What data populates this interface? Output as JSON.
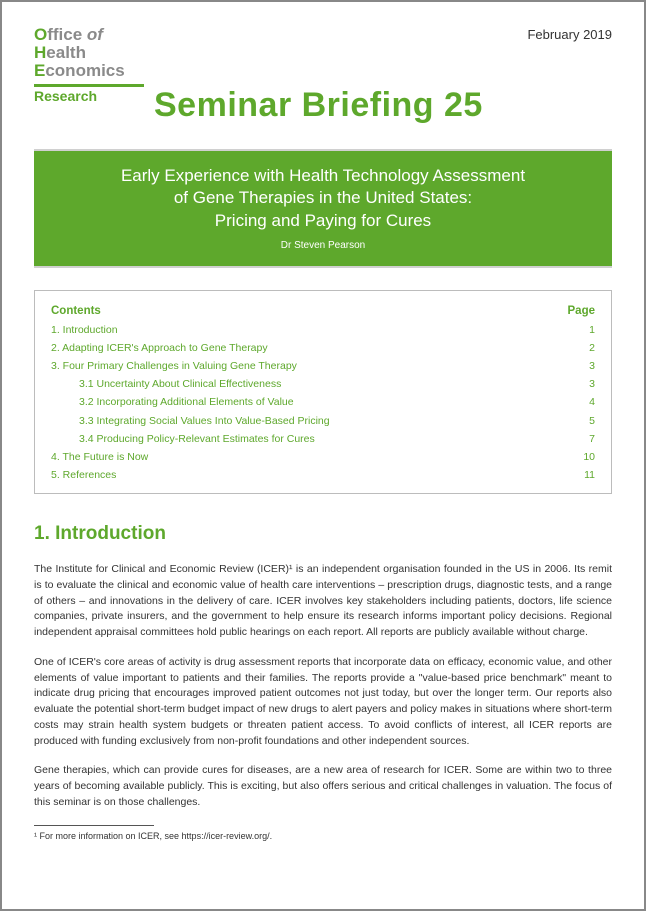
{
  "meta": {
    "date": "February 2019",
    "org_line1a": "O",
    "org_line1b": "ffice ",
    "org_line1c": "of",
    "org_line2a": "H",
    "org_line2b": "ealth",
    "org_line3a": "E",
    "org_line3b": "conomics",
    "org_research": "Research",
    "main_title": "Seminar Briefing 25"
  },
  "banner": {
    "line1": "Early Experience with Health Technology Assessment",
    "line2": "of Gene Therapies in the United States:",
    "line3": "Pricing and Paying for Cures",
    "author": "Dr Steven Pearson"
  },
  "toc": {
    "head_left": "Contents",
    "head_right": "Page",
    "rows": [
      {
        "label": "1.  Introduction",
        "page": "1",
        "sub": false
      },
      {
        "label": "2.  Adapting ICER's Approach to Gene Therapy",
        "page": "2",
        "sub": false
      },
      {
        "label": "3.  Four Primary Challenges in Valuing Gene Therapy",
        "page": "3",
        "sub": false
      },
      {
        "label": "3.1 Uncertainty About Clinical Effectiveness",
        "page": "3",
        "sub": true
      },
      {
        "label": "3.2 Incorporating Additional Elements of Value",
        "page": "4",
        "sub": true
      },
      {
        "label": "3.3 Integrating Social Values Into Value-Based Pricing",
        "page": "5",
        "sub": true
      },
      {
        "label": "3.4 Producing Policy-Relevant Estimates for Cures",
        "page": "7",
        "sub": true
      },
      {
        "label": "4.  The Future is Now",
        "page": "10",
        "sub": false
      },
      {
        "label": "5.  References",
        "page": "11",
        "sub": false
      }
    ]
  },
  "section": {
    "heading": "1. Introduction",
    "p1": "The Institute for Clinical and Economic Review (ICER)¹ is an independent organisation founded in the US in 2006. Its remit is to evaluate the clinical and economic value of health care interventions – prescription drugs, diagnostic tests, and a range of others – and innovations in the delivery of care. ICER involves key stakeholders including patients, doctors, life science companies, private insurers, and the government to help ensure its research informs important policy decisions. Regional independent appraisal committees hold public hearings on each report. All reports are publicly available without charge.",
    "p2": "One of ICER's core areas of activity is drug assessment reports that incorporate data on efficacy, economic value, and other elements of value important to patients and their families. The reports provide a \"value-based price benchmark\" meant to indicate drug pricing that encourages improved patient outcomes not just today, but over the longer term. Our reports also evaluate the potential short-term budget impact of new drugs to alert payers and policy makes in situations where short-term costs may strain health system budgets or threaten patient access. To avoid conflicts of interest, all ICER reports are produced with funding exclusively from non-profit foundations and other independent sources.",
    "p3": "Gene therapies, which can provide cures for diseases, are a new area of research for ICER. Some are within two to three years of becoming available publicly. This is exciting, but also offers serious and critical challenges in valuation. The focus of this seminar is on those challenges."
  },
  "footnote": {
    "text": "¹ For more information on ICER, see https://icer-review.org/."
  },
  "colors": {
    "accent": "#5ea82c",
    "text": "#333333",
    "muted": "#8a8a8a",
    "border": "#bcbcbc"
  }
}
